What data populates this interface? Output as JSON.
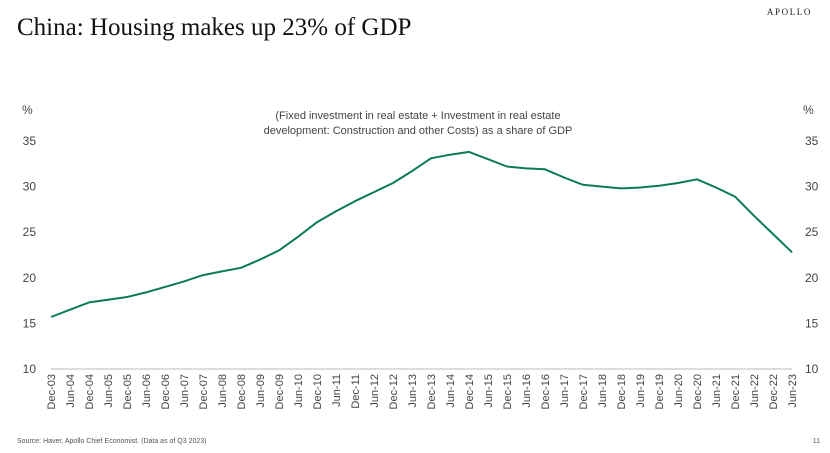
{
  "header": {
    "title": "China: Housing makes up 23% of GDP",
    "brand": "APOLLO"
  },
  "footer": {
    "source": "Source: Haver, Apollo Chief Economist. (Data as of Q3 2023)",
    "page_number": "11"
  },
  "colors": {
    "line": "#0a7a5a",
    "axis": "#bbbbbb"
  },
  "chart_data": {
    "type": "line",
    "subtitle_lines": [
      "(Fixed investment in real estate + Investment in real estate",
      "development: Construction and other Costs) as a share of GDP"
    ],
    "ylabel_left": "%",
    "ylabel_right": "%",
    "ylim": [
      10,
      35
    ],
    "yticks": [
      10,
      15,
      20,
      25,
      30,
      35
    ],
    "grid": false,
    "categories": [
      "Dec-03",
      "Jun-04",
      "Dec-04",
      "Jun-05",
      "Dec-05",
      "Jun-06",
      "Dec-06",
      "Jun-07",
      "Dec-07",
      "Jun-08",
      "Dec-08",
      "Jun-09",
      "Dec-09",
      "Jun-10",
      "Dec-10",
      "Jun-11",
      "Dec-11",
      "Jun-12",
      "Dec-12",
      "Jun-13",
      "Dec-13",
      "Jun-14",
      "Dec-14",
      "Jun-15",
      "Dec-15",
      "Jun-16",
      "Dec-16",
      "Jun-17",
      "Dec-17",
      "Jun-18",
      "Dec-18",
      "Jun-19",
      "Dec-19",
      "Jun-20",
      "Dec-20",
      "Jun-21",
      "Dec-21",
      "Jun-22",
      "Dec-22",
      "Jun-23"
    ],
    "series": [
      {
        "values": [
          15.7,
          16.5,
          17.3,
          17.6,
          17.9,
          18.4,
          19.0,
          19.6,
          20.3,
          20.7,
          21.1,
          22.0,
          23.0,
          24.5,
          26.1,
          27.3,
          28.4,
          29.4,
          30.4,
          31.7,
          33.1,
          33.5,
          33.8,
          33.0,
          32.2,
          32.0,
          31.9,
          31.0,
          30.2,
          30.0,
          29.8,
          29.9,
          30.1,
          30.4,
          30.8,
          29.9,
          28.9,
          26.8,
          24.8,
          22.8
        ]
      }
    ]
  }
}
